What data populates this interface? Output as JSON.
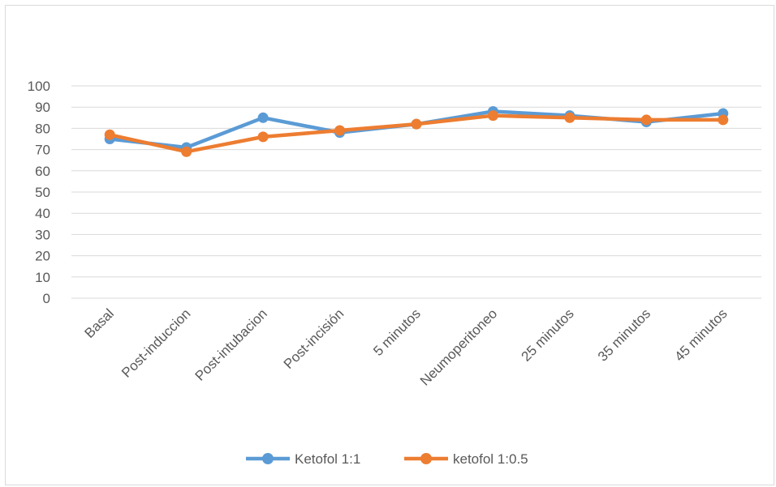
{
  "chart_data": {
    "type": "line",
    "title": "",
    "xlabel": "",
    "ylabel": "",
    "categories": [
      "Basal",
      "Post-induccion",
      "Post-intubacion",
      "Post-incisión",
      "5 minutos",
      "Neumoperitoneo",
      "25 minutos",
      "35 minutos",
      "45 minutos"
    ],
    "ylim": [
      0,
      100
    ],
    "yticks": [
      "0",
      "10",
      "20",
      "30",
      "40",
      "50",
      "60",
      "70",
      "80",
      "90",
      "100"
    ],
    "grid": true,
    "legend_position": "bottom",
    "series": [
      {
        "name": "Ketofol 1:1",
        "color": "#5b9bd5",
        "values": [
          75,
          71,
          85,
          78,
          82,
          88,
          86,
          83,
          87
        ]
      },
      {
        "name": "ketofol 1:0.5",
        "color": "#ed7d31",
        "values": [
          77,
          69,
          76,
          79,
          82,
          86,
          85,
          84,
          84
        ]
      }
    ]
  }
}
